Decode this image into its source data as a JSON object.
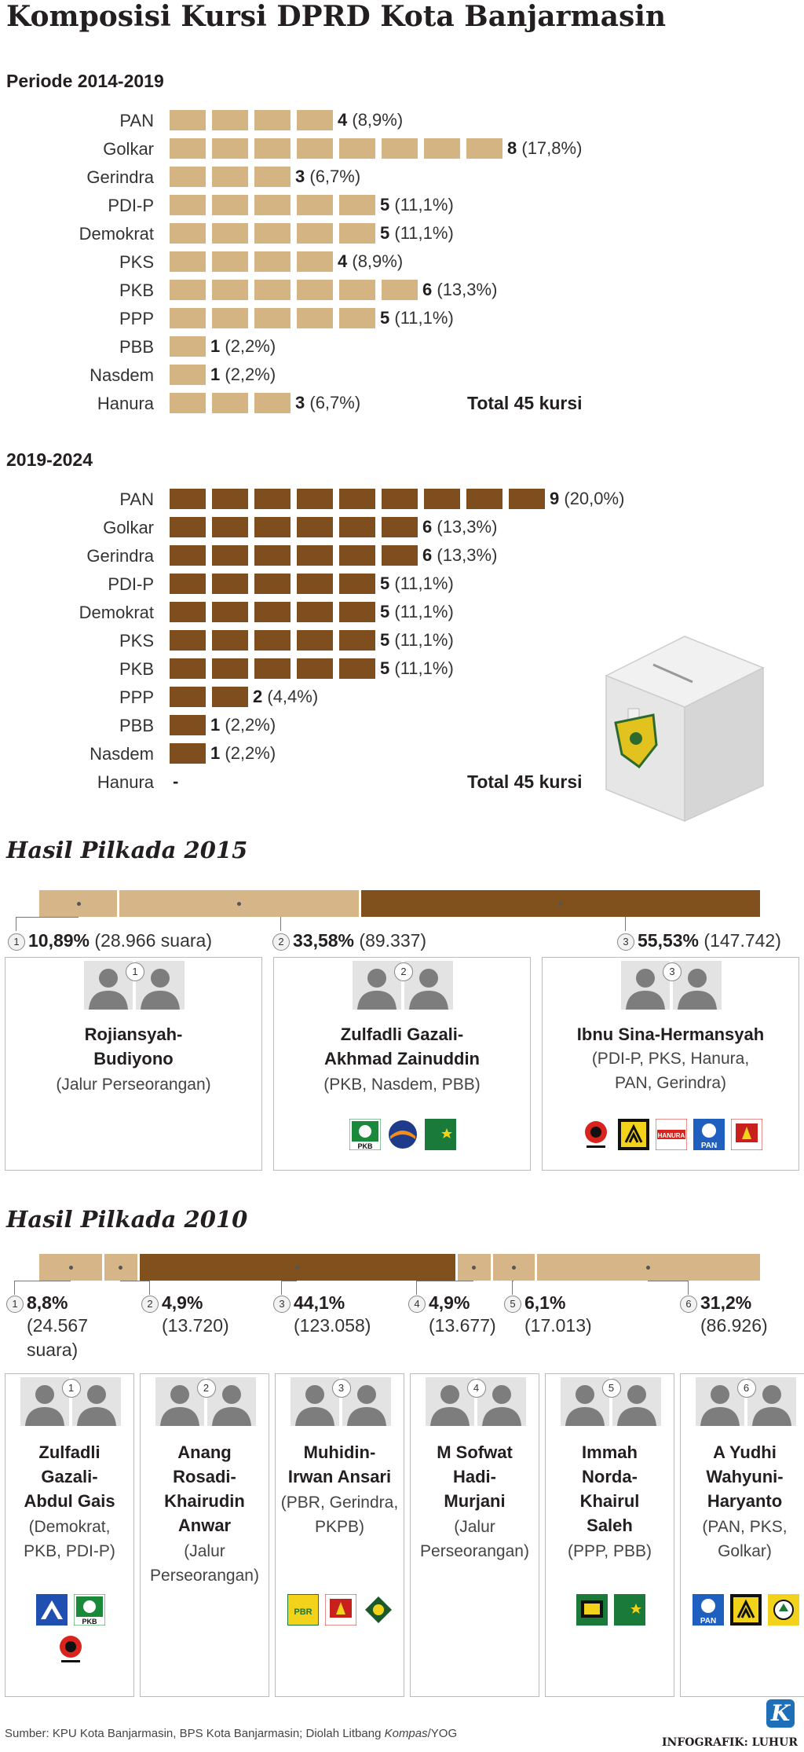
{
  "title": "Komposisi Kursi DPRD Kota Banjarmasin",
  "chart_data": [
    {
      "type": "bar",
      "title": "Periode 2014-2019",
      "categories": [
        "PAN",
        "Golkar",
        "Gerindra",
        "PDI-P",
        "Demokrat",
        "PKS",
        "PKB",
        "PPP",
        "PBB",
        "Nasdem",
        "Hanura"
      ],
      "values": [
        4,
        8,
        3,
        5,
        5,
        4,
        6,
        5,
        1,
        1,
        3
      ],
      "value_labels": [
        "4",
        "8",
        "3",
        "5",
        "5",
        "4",
        "6",
        "5",
        "1",
        "1",
        "3"
      ],
      "percent_labels": [
        "(8,9%)",
        "(17,8%)",
        "(6,7%)",
        "(11,1%)",
        "(11,1%)",
        "(8,9%)",
        "(13,3%)",
        "(11,1%)",
        "(2,2%)",
        "(2,2%)",
        "(6,7%)"
      ],
      "total_label": "Total 45 kursi",
      "color": "#d4b482"
    },
    {
      "type": "bar",
      "title": "2019-2024",
      "categories": [
        "PAN",
        "Golkar",
        "Gerindra",
        "PDI-P",
        "Demokrat",
        "PKS",
        "PKB",
        "PPP",
        "PBB",
        "Nasdem",
        "Hanura"
      ],
      "values": [
        9,
        6,
        6,
        5,
        5,
        5,
        5,
        2,
        1,
        1,
        0
      ],
      "value_labels": [
        "9",
        "6",
        "6",
        "5",
        "5",
        "5",
        "5",
        "2",
        "1",
        "1",
        "-"
      ],
      "percent_labels": [
        "(20,0%)",
        "(13,3%)",
        "(13,3%)",
        "(11,1%)",
        "(11,1%)",
        "(11,1%)",
        "(11,1%)",
        "(4,4%)",
        "(2,2%)",
        "(2,2%)",
        ""
      ],
      "total_label": "Total 45 kursi",
      "color": "#7e4e1f"
    },
    {
      "type": "bar",
      "title": "Hasil Pilkada 2015",
      "stacked": true,
      "values_percent": [
        10.89,
        33.58,
        55.53
      ],
      "colors": [
        "#d6b688",
        "#d6b688",
        "#80511d"
      ]
    },
    {
      "type": "bar",
      "title": "Hasil Pilkada 2010",
      "stacked": true,
      "values_percent": [
        8.8,
        4.9,
        44.1,
        4.9,
        6.1,
        31.2
      ],
      "colors": [
        "#d6b688",
        "#d6b688",
        "#80511d",
        "#d6b688",
        "#d6b688",
        "#d6b688"
      ]
    }
  ],
  "pilkada2015": {
    "title": "Hasil Pilkada 2015",
    "results": [
      {
        "num": "1",
        "pct": "10,89%",
        "votes": "(28.966 suara)"
      },
      {
        "num": "2",
        "pct": "33,58%",
        "votes": "(89.337)"
      },
      {
        "num": "3",
        "pct": "55,53%",
        "votes": "(147.742)"
      }
    ],
    "candidates": [
      {
        "num": "1",
        "name1": "Rojiansyah-",
        "name2": "Budiyono",
        "sub1": "(Jalur Perseorangan)",
        "sub2": "",
        "logos": []
      },
      {
        "num": "2",
        "name1": "Zulfadli Gazali-",
        "name2": "Akhmad Zainuddin",
        "sub1": "(PKB, Nasdem, PBB)",
        "sub2": "",
        "logos": [
          "PKB",
          "Nasdem",
          "PBB"
        ]
      },
      {
        "num": "3",
        "name1": "Ibnu Sina-Hermansyah",
        "name2": "",
        "sub1": "(PDI-P, PKS, Hanura,",
        "sub2": "PAN, Gerindra)",
        "logos": [
          "PDI-P",
          "PKS",
          "HANURA",
          "PAN",
          "Gerindra"
        ]
      }
    ]
  },
  "pilkada2010": {
    "title": "Hasil Pilkada 2010",
    "results": [
      {
        "num": "1",
        "pct": "8,8%",
        "votes": "(24.567",
        "votes2": "suara)"
      },
      {
        "num": "2",
        "pct": "4,9%",
        "votes": "(13.720)",
        "votes2": ""
      },
      {
        "num": "3",
        "pct": "44,1%",
        "votes": "(123.058)",
        "votes2": ""
      },
      {
        "num": "4",
        "pct": "4,9%",
        "votes": "(13.677)",
        "votes2": ""
      },
      {
        "num": "5",
        "pct": "6,1%",
        "votes": "(17.013)",
        "votes2": ""
      },
      {
        "num": "6",
        "pct": "31,2%",
        "votes": "(86.926)",
        "votes2": ""
      }
    ],
    "candidates": [
      {
        "num": "1",
        "lines": [
          "Zulfadli",
          "Gazali-",
          "Abdul Gais"
        ],
        "subs": [
          "(Demokrat,",
          "PKB, PDI-P)"
        ],
        "logos": [
          "Demokrat",
          "PKB",
          "PDI-P"
        ]
      },
      {
        "num": "2",
        "lines": [
          "Anang",
          "Rosadi-",
          "Khairudin",
          "Anwar"
        ],
        "subs": [
          "(Jalur",
          "Perseorangan)"
        ],
        "logos": []
      },
      {
        "num": "3",
        "lines": [
          "Muhidin-",
          "Irwan Ansari"
        ],
        "subs": [
          "(PBR, Gerindra,",
          "PKPB)"
        ],
        "logos": [
          "PBR",
          "Gerindra",
          "PKPB"
        ]
      },
      {
        "num": "4",
        "lines": [
          "M Sofwat",
          "Hadi-",
          "Murjani"
        ],
        "subs": [
          "(Jalur",
          "Perseorangan)"
        ],
        "logos": []
      },
      {
        "num": "5",
        "lines": [
          "Immah",
          "Norda-",
          "Khairul",
          "Saleh"
        ],
        "subs": [
          "(PPP, PBB)"
        ],
        "logos": [
          "PPP",
          "PBB"
        ]
      },
      {
        "num": "6",
        "lines": [
          "A Yudhi",
          "Wahyuni-",
          "Haryanto"
        ],
        "subs": [
          "(PAN, PKS,",
          "Golkar)"
        ],
        "logos": [
          "PAN",
          "PKS",
          "Golkar"
        ]
      }
    ]
  },
  "logo_text": {
    "pkb": "PKB",
    "hanura": "HANURA",
    "pan": "PAN",
    "pbr": "PBR"
  },
  "footer": {
    "source_a": "Sumber: KPU Kota Banjarmasin, BPS Kota Banjarmasin; Diolah Litbang ",
    "source_b": "Kompas",
    "source_c": "/YOG",
    "credit": "INFOGRAFIK: LUHUR",
    "logo_letter": "K"
  }
}
